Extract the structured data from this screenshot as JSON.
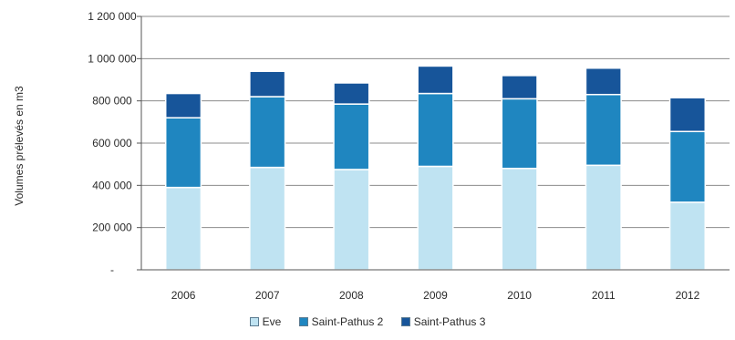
{
  "chart_data": {
    "type": "bar",
    "stacked": true,
    "title": "",
    "xlabel": "",
    "ylabel": "Volumes prélevés en m3",
    "ylim": [
      0,
      1200000
    ],
    "yticks": [
      0,
      200000,
      400000,
      600000,
      800000,
      1000000,
      1200000
    ],
    "ytick_labels": [
      "-",
      "200 000",
      "400 000",
      "600 000",
      "800 000",
      "1 000 000",
      "1 200 000"
    ],
    "grid": true,
    "legend_position": "bottom",
    "categories": [
      "2006",
      "2007",
      "2008",
      "2009",
      "2010",
      "2011",
      "2012"
    ],
    "series": [
      {
        "name": "Eve",
        "color": "#bfe3f2",
        "values": [
          390000,
          485000,
          475000,
          490000,
          480000,
          495000,
          320000
        ]
      },
      {
        "name": "Saint-Pathus 2",
        "color": "#1f86c0",
        "values": [
          330000,
          335000,
          310000,
          345000,
          330000,
          335000,
          335000
        ]
      },
      {
        "name": "Saint-Pathus 3",
        "color": "#17559a",
        "values": [
          115000,
          120000,
          100000,
          130000,
          110000,
          125000,
          160000
        ]
      }
    ]
  }
}
